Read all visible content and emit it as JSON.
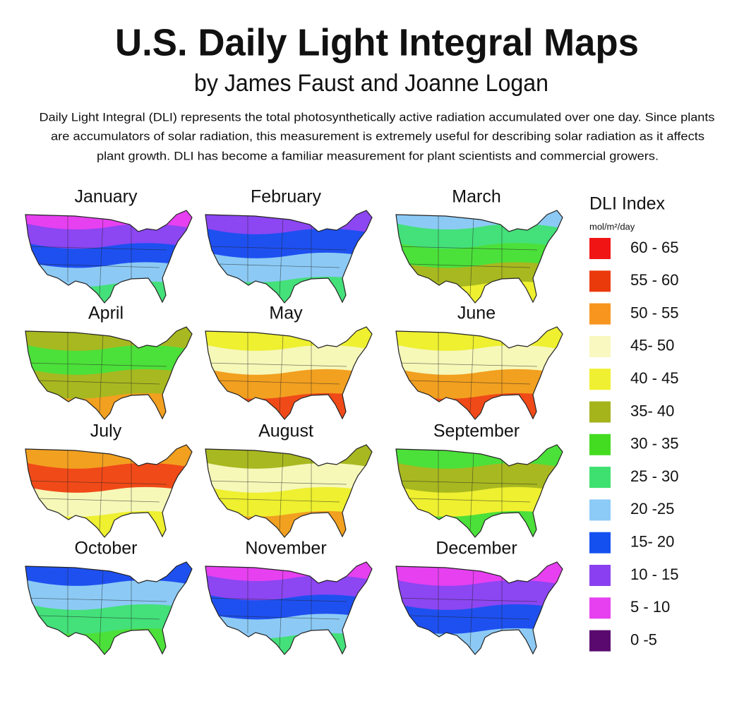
{
  "header": {
    "title": "U.S. Daily Light Integral Maps",
    "subtitle": "by James Faust and Joanne Logan",
    "description": [
      "Daily Light Integral (DLI) represents the total photosynthetically active radiation accumulated over one day. Since plants",
      "are accumulators of solar radiation, this measurement is extremely useful for describing solar radiation as it affects",
      "plant growth. DLI has become a familiar measurement for plant scientists and commercial growers."
    ]
  },
  "maps": [
    {
      "month": "January",
      "bands": [
        "#e640f0",
        "#8c46f2",
        "#1e50f0",
        "#8ccaf5",
        "#44e07a"
      ]
    },
    {
      "month": "February",
      "bands": [
        "#8c46f2",
        "#1e50f0",
        "#8ccaf5",
        "#44e07a"
      ]
    },
    {
      "month": "March",
      "bands": [
        "#8ccaf5",
        "#44e07a",
        "#4ce03a",
        "#a8b820",
        "#eef030"
      ]
    },
    {
      "month": "April",
      "bands": [
        "#a8b820",
        "#4ce03a",
        "#a8b820",
        "#f2a020"
      ]
    },
    {
      "month": "May",
      "bands": [
        "#eef030",
        "#f6f8b8",
        "#f2a020",
        "#f04a18"
      ]
    },
    {
      "month": "June",
      "bands": [
        "#eef030",
        "#f6f8b8",
        "#f2a020",
        "#f04a18"
      ]
    },
    {
      "month": "July",
      "bands": [
        "#f2a020",
        "#f04a18",
        "#f6f8b8",
        "#eef030"
      ]
    },
    {
      "month": "August",
      "bands": [
        "#a8b820",
        "#f6f8b8",
        "#eef030",
        "#f2a020"
      ]
    },
    {
      "month": "September",
      "bands": [
        "#4ce03a",
        "#a8b820",
        "#eef030",
        "#4ce03a"
      ]
    },
    {
      "month": "October",
      "bands": [
        "#1e50f0",
        "#8ccaf5",
        "#44e07a",
        "#4ce03a"
      ]
    },
    {
      "month": "November",
      "bands": [
        "#e640f0",
        "#8c46f2",
        "#1e50f0",
        "#8ccaf5",
        "#44e07a"
      ]
    },
    {
      "month": "December",
      "bands": [
        "#e640f0",
        "#8c46f2",
        "#1e50f0",
        "#8ccaf5"
      ]
    }
  ],
  "legend": {
    "title": "DLI Index",
    "unit": "mol/m²/day",
    "items": [
      {
        "label": "60 - 65",
        "color": "#f01414"
      },
      {
        "label": "55 - 60",
        "color": "#ea3a0c"
      },
      {
        "label": "50 - 55",
        "color": "#f7951e"
      },
      {
        "label": "45- 50",
        "color": "#f8f8c0"
      },
      {
        "label": "40 - 45",
        "color": "#f0f032"
      },
      {
        "label": "35- 40",
        "color": "#a6b41c"
      },
      {
        "label": "30 - 35",
        "color": "#44dc20"
      },
      {
        "label": "25 - 30",
        "color": "#3ee070"
      },
      {
        "label": "20 -25",
        "color": "#8ccaf8"
      },
      {
        "label": "15- 20",
        "color": "#1450f0"
      },
      {
        "label": "10 - 15",
        "color": "#8a40f0"
      },
      {
        "label": "5 - 10",
        "color": "#e640f0"
      },
      {
        "label": "0 -5",
        "color": "#5a0a6e"
      }
    ]
  }
}
